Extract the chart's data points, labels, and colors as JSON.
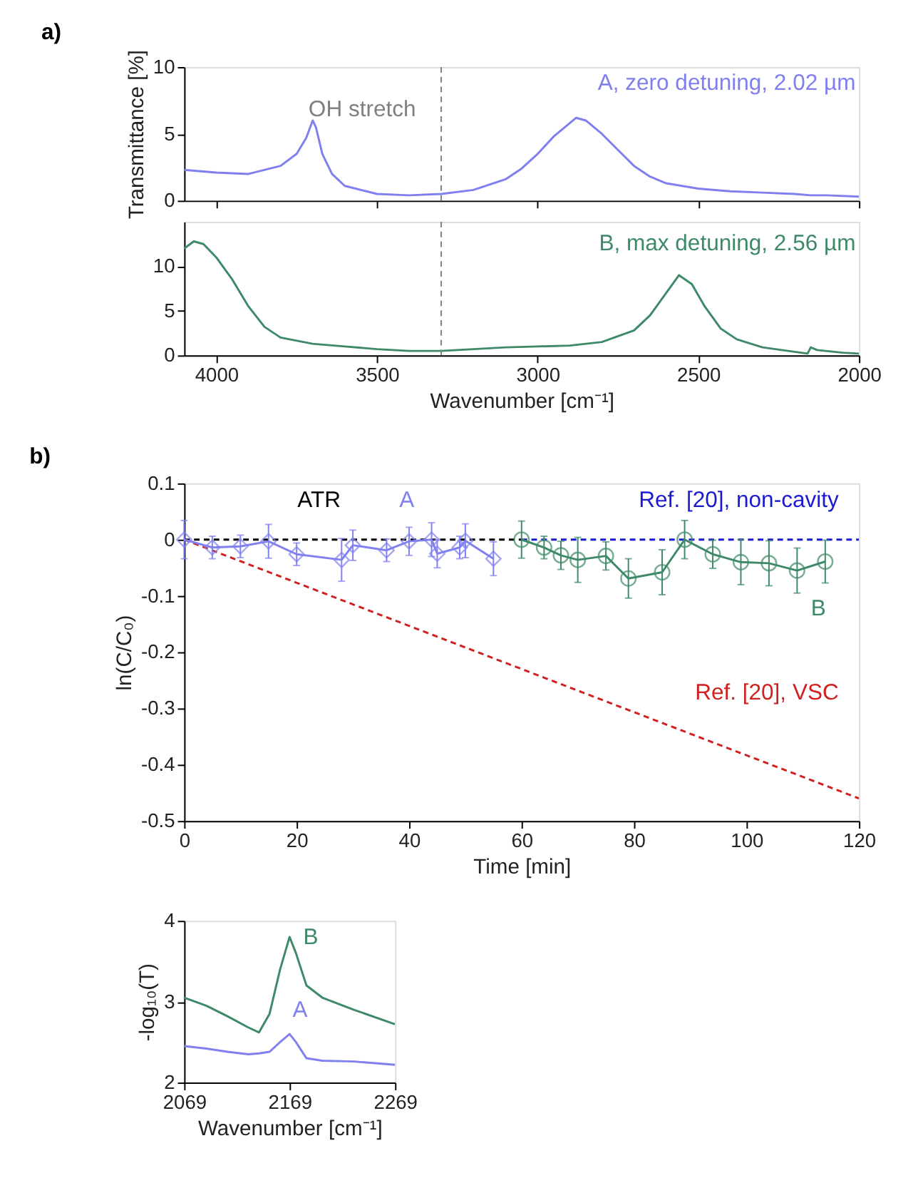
{
  "chart_data": [
    {
      "type": "line",
      "title": "a)",
      "ylabel": "Transmittance [%]",
      "xlim": [
        4100,
        2000
      ],
      "xticks": [
        4000,
        3500,
        3000,
        2500,
        2000
      ],
      "ylim": [
        0,
        10
      ],
      "yticks": [
        0,
        5,
        10
      ],
      "tick_labels": "y",
      "grid": false,
      "marker": "none",
      "x": [
        4100,
        4000,
        3900,
        3800,
        3750,
        3720,
        3700,
        3690,
        3670,
        3640,
        3600,
        3500,
        3400,
        3300,
        3200,
        3100,
        3050,
        3000,
        2950,
        2900,
        2880,
        2850,
        2800,
        2750,
        2700,
        2650,
        2600,
        2500,
        2400,
        2300,
        2200,
        2150,
        2100,
        2000
      ],
      "series": [
        {
          "name": "A, zero detuning, 2.02 µm",
          "color": "#7f7ff0",
          "values": [
            2.3,
            2.1,
            2.0,
            2.6,
            3.5,
            4.7,
            6.0,
            5.5,
            3.5,
            2.0,
            1.1,
            0.5,
            0.4,
            0.5,
            0.8,
            1.6,
            2.4,
            3.5,
            4.8,
            5.8,
            6.2,
            6.0,
            5.0,
            3.8,
            2.6,
            1.8,
            1.3,
            0.9,
            0.7,
            0.6,
            0.5,
            0.4,
            0.4,
            0.3
          ]
        }
      ],
      "ref_lines": [
        {
          "axis": "x",
          "value": 3300,
          "color": "#808080",
          "line_style": "dashed"
        }
      ],
      "annotations": [
        {
          "text": "OH stretch",
          "x": 3300,
          "y": 6
        }
      ]
    },
    {
      "type": "line",
      "xlabel": "Wavenumber [cm⁻¹]",
      "xlim": [
        4100,
        2000
      ],
      "xticks": [
        4000,
        3500,
        3000,
        2500,
        2000
      ],
      "ylim": [
        0,
        15
      ],
      "yticks": [
        0,
        5,
        10
      ],
      "grid": false,
      "marker": "none",
      "x": [
        4100,
        4070,
        4040,
        4000,
        3950,
        3900,
        3850,
        3800,
        3700,
        3600,
        3500,
        3400,
        3300,
        3200,
        3100,
        3000,
        2900,
        2800,
        2700,
        2650,
        2600,
        2560,
        2520,
        2480,
        2430,
        2380,
        2300,
        2200,
        2160,
        2150,
        2130,
        2050,
        2000
      ],
      "series": [
        {
          "name": "B, max detuning, 2.56 µm",
          "color": "#3e8a68",
          "values": [
            12.0,
            12.8,
            12.5,
            11.0,
            8.5,
            5.5,
            3.2,
            2.0,
            1.3,
            1.0,
            0.7,
            0.5,
            0.5,
            0.7,
            0.9,
            1.0,
            1.1,
            1.5,
            2.8,
            4.5,
            7.0,
            9.0,
            8.0,
            5.5,
            3.0,
            1.8,
            0.9,
            0.4,
            0.2,
            0.9,
            0.6,
            0.3,
            0.2
          ]
        }
      ],
      "ref_lines": [
        {
          "axis": "x",
          "value": 3300,
          "color": "#808080",
          "line_style": "dashed"
        }
      ]
    },
    {
      "type": "line",
      "title": "b)",
      "xlabel": "Time [min]",
      "ylabel": "ln(C/C₀)",
      "xlim": [
        0,
        120
      ],
      "xticks": [
        0,
        20,
        40,
        60,
        80,
        100,
        120
      ],
      "ylim": [
        -0.5,
        0.1
      ],
      "yticks": [
        -0.5,
        -0.4,
        -0.3,
        -0.2,
        -0.1,
        0,
        0.1
      ],
      "grid": false,
      "series": [
        {
          "name": "ATR",
          "color": "#000000",
          "line_style": "dashed",
          "marker": "none",
          "x": [
            0,
            60
          ],
          "values": [
            0,
            0
          ]
        },
        {
          "name": "Ref. [20], non-cavity",
          "color": "#1a1ad0",
          "line_style": "dashed",
          "marker": "none",
          "x": [
            60,
            120
          ],
          "values": [
            0,
            0
          ]
        },
        {
          "name": "Ref. [20], VSC",
          "color": "#d02020",
          "line_style": "dashed",
          "marker": "none",
          "x": [
            0,
            120
          ],
          "values": [
            0,
            -0.46
          ]
        },
        {
          "name": "A",
          "color": "#8080f0",
          "marker": "diamond",
          "line_style": "solid",
          "x": [
            0,
            5,
            10,
            15,
            20,
            28,
            30,
            36,
            40,
            44,
            45,
            49,
            50,
            55
          ],
          "values": [
            0,
            -0.014,
            -0.012,
            -0.003,
            -0.026,
            -0.036,
            -0.01,
            -0.019,
            -0.003,
            0,
            -0.025,
            -0.014,
            -0.002,
            -0.034
          ],
          "errors": [
            0.034,
            0.02,
            0.02,
            0.03,
            0.02,
            0.038,
            0.027,
            0.02,
            0.025,
            0.03,
            0.025,
            0.02,
            0.03,
            0.03
          ]
        },
        {
          "name": "B",
          "color": "#3e8a68",
          "marker": "circle",
          "line_style": "solid",
          "x": [
            60,
            64,
            67,
            70,
            75,
            79,
            85,
            89,
            94,
            99,
            104,
            109,
            114
          ],
          "values": [
            0,
            -0.014,
            -0.028,
            -0.036,
            -0.029,
            -0.069,
            -0.058,
            0,
            -0.026,
            -0.04,
            -0.042,
            -0.055,
            -0.039
          ],
          "errors": [
            0.033,
            0.02,
            0.025,
            0.04,
            0.025,
            0.035,
            0.04,
            0.034,
            0.025,
            0.04,
            0.04,
            0.04,
            0.038
          ]
        }
      ]
    },
    {
      "type": "line",
      "xlabel": "Wavenumber [cm⁻¹]",
      "ylabel": "-log₁₀(T)",
      "xlim": [
        2069,
        2269
      ],
      "xticks": [
        2069,
        2169,
        2269
      ],
      "ylim": [
        2,
        4
      ],
      "yticks": [
        2,
        3,
        4
      ],
      "grid": false,
      "marker": "none",
      "x": [
        2069,
        2090,
        2110,
        2130,
        2140,
        2150,
        2160,
        2169,
        2175,
        2185,
        2200,
        2230,
        2269
      ],
      "series": [
        {
          "name": "B",
          "color": "#3e8a68",
          "values": [
            3.05,
            2.95,
            2.82,
            2.68,
            2.62,
            2.85,
            3.4,
            3.8,
            3.6,
            3.2,
            3.05,
            2.9,
            2.72
          ]
        },
        {
          "name": "A",
          "color": "#8080f0",
          "values": [
            2.45,
            2.42,
            2.38,
            2.35,
            2.36,
            2.38,
            2.5,
            2.6,
            2.5,
            2.3,
            2.27,
            2.26,
            2.22
          ]
        }
      ]
    }
  ]
}
